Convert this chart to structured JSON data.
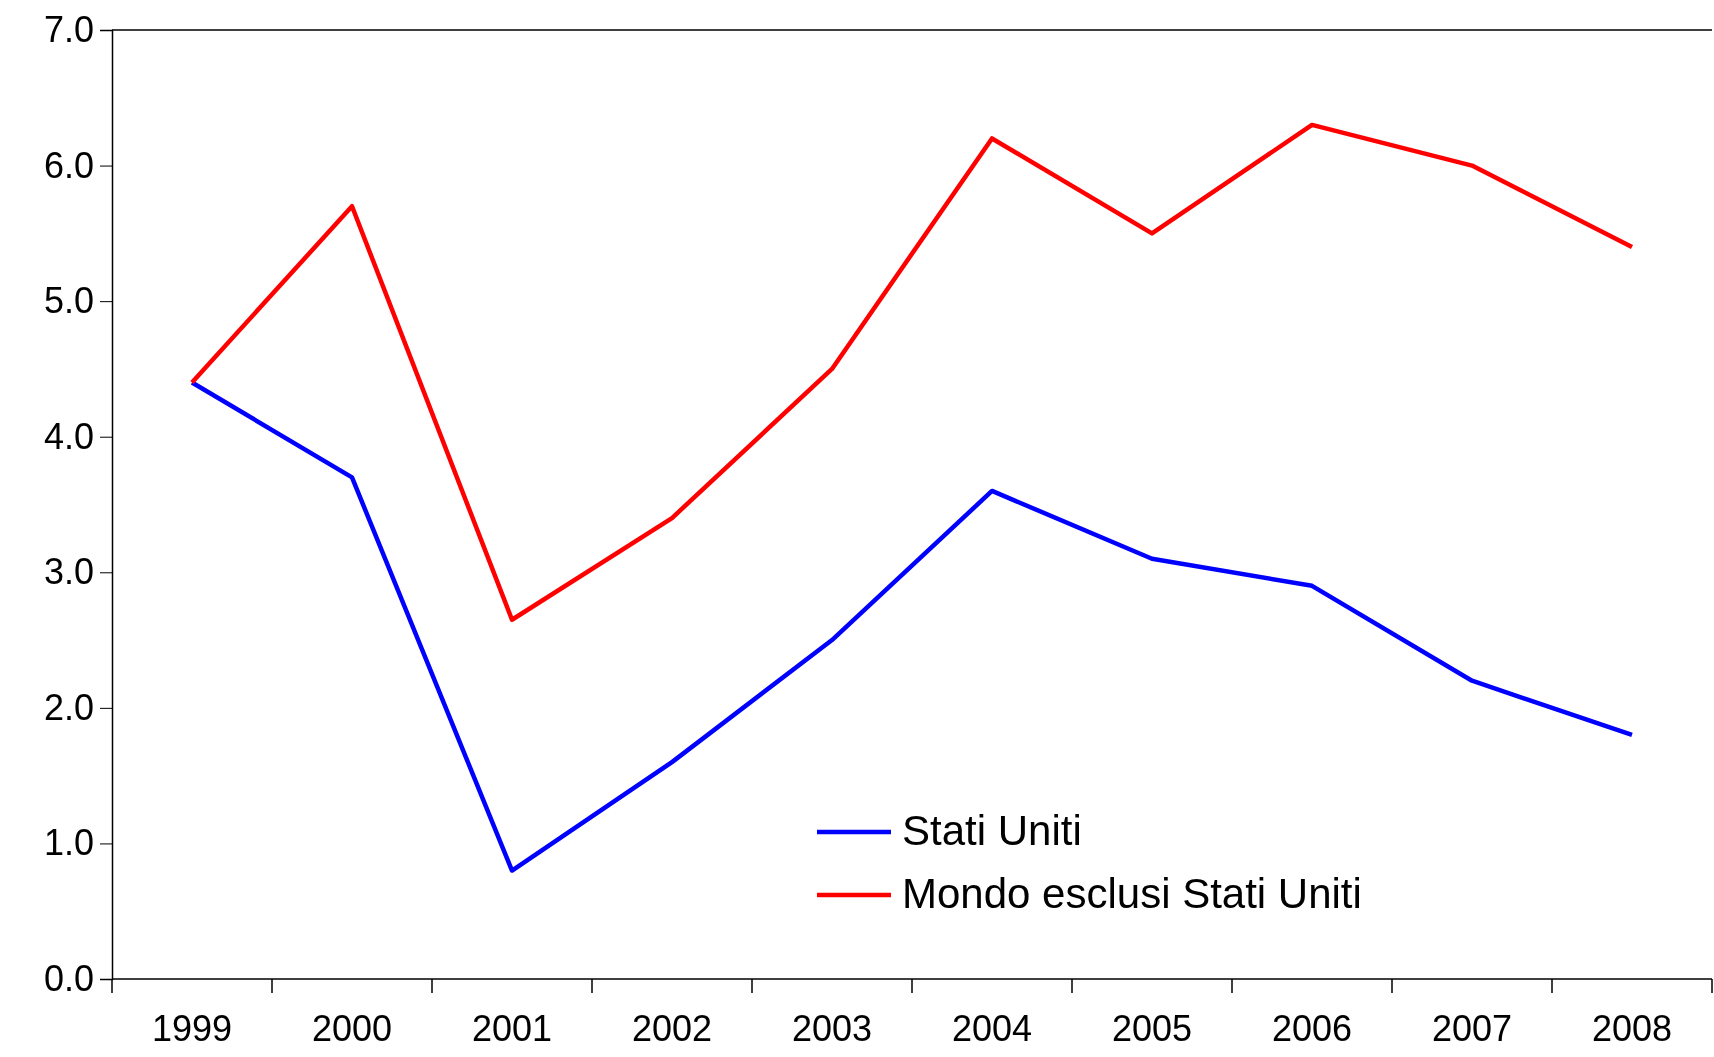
{
  "chart_data": {
    "type": "line",
    "categories": [
      "1999",
      "2000",
      "2001",
      "2002",
      "2003",
      "2004",
      "2005",
      "2006",
      "2007",
      "2008"
    ],
    "series": [
      {
        "name": "Stati Uniti",
        "color": "#0000ff",
        "values": [
          4.4,
          3.7,
          0.8,
          1.6,
          2.5,
          3.6,
          3.1,
          2.9,
          2.2,
          1.8
        ]
      },
      {
        "name": "Mondo esclusi Stati Uniti",
        "color": "#ff0000",
        "values": [
          4.4,
          5.7,
          2.65,
          3.4,
          4.5,
          6.2,
          5.5,
          6.3,
          6.0,
          5.4
        ]
      }
    ],
    "ylim": [
      0,
      7
    ],
    "yticks": [
      {
        "value": 0,
        "label": "0.0"
      },
      {
        "value": 1,
        "label": "1.0"
      },
      {
        "value": 2,
        "label": "2.0"
      },
      {
        "value": 3,
        "label": "3.0"
      },
      {
        "value": 4,
        "label": "4.0"
      },
      {
        "value": 5,
        "label": "5.0"
      },
      {
        "value": 6,
        "label": "6.0"
      },
      {
        "value": 7,
        "label": "7.0"
      }
    ],
    "legend": "bottom",
    "grid": false,
    "marker": "none",
    "line_style": "solid"
  }
}
